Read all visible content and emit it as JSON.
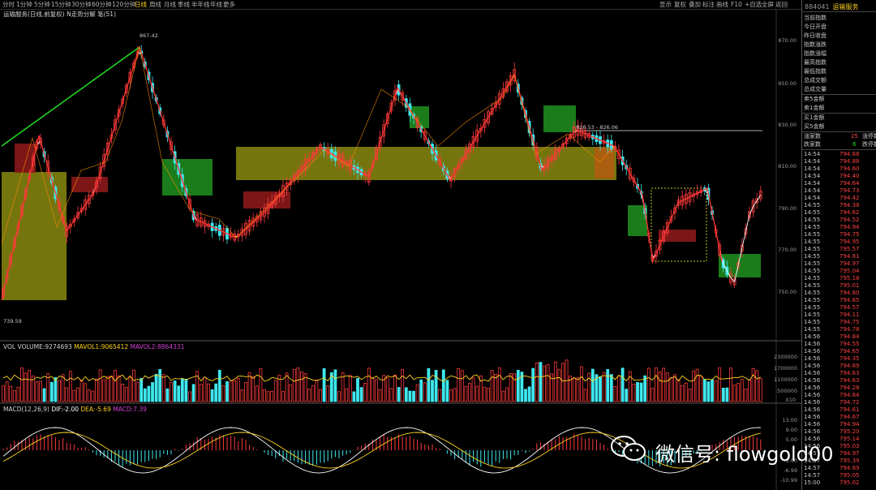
{
  "toolbar": {
    "timeframes": [
      "分时",
      "1分钟",
      "5分钟",
      "15分钟",
      "30分钟",
      "60分钟",
      "120分钟",
      "日线",
      "周线",
      "月线",
      "季线",
      "半年线",
      "年线",
      "更多"
    ],
    "active_index": 7,
    "right_tools": [
      "显示",
      "复权",
      "叠加",
      "标注",
      "画线",
      "F10",
      "+自选",
      "全屏",
      "返回"
    ]
  },
  "stock": {
    "code": "884041",
    "name": "运输服务"
  },
  "main_chart": {
    "title": "运输服务(日线,前复权) N走势分解 笔(51)",
    "y_ticks": [
      "870.00",
      "850.00",
      "830.00",
      "810.00",
      "790.00",
      "770.00",
      "750.00"
    ],
    "high_label": "867.42",
    "low_label": "739.59",
    "level_label": "826.53 - 826.06"
  },
  "volume": {
    "label": "VOL VOLUME:9274693",
    "mavol1": "MAVOL1:9065412",
    "mavol2": "MAVOL2:8864331",
    "y_ticks": [
      "2300000",
      "1700000",
      "1100000",
      "500000"
    ],
    "unit": "X10"
  },
  "macd": {
    "label": "MACD(12,26,9)",
    "dif": "DIF:-2.00",
    "dea": "DEA:-5.69",
    "macd": "MACD:7.39",
    "y_ticks": [
      "13.00",
      "9.00",
      "5.00",
      "-3.00",
      "-6.99",
      "-10.99"
    ]
  },
  "quote_panel": {
    "fields": [
      "当前指数",
      "今日开盘",
      "昨日收盘",
      "指数涨跌",
      "指数涨幅",
      "最高指数",
      "最低指数",
      "总成交额",
      "总成交量"
    ],
    "orders": [
      "卖5金额",
      "卖1金额",
      "买1金额",
      "买5金额"
    ],
    "up_label": "涨家数",
    "up_count": "25",
    "up_tag": "涨停数",
    "down_label": "跌家数",
    "down_count": "6",
    "down_tag": "跌停数"
  },
  "ticks": [
    {
      "t": "14:54",
      "p": "794.68"
    },
    {
      "t": "14:54",
      "p": "794.88"
    },
    {
      "t": "14:54",
      "p": "794.60"
    },
    {
      "t": "14:54",
      "p": "794.40"
    },
    {
      "t": "14:54",
      "p": "794.64"
    },
    {
      "t": "14:54",
      "p": "794.73"
    },
    {
      "t": "14:54",
      "p": "794.42"
    },
    {
      "t": "14:55",
      "p": "794.38"
    },
    {
      "t": "14:55",
      "p": "794.62"
    },
    {
      "t": "14:55",
      "p": "794.52"
    },
    {
      "t": "14:55",
      "p": "794.94"
    },
    {
      "t": "14:55",
      "p": "794.75"
    },
    {
      "t": "14:55",
      "p": "794.95"
    },
    {
      "t": "14:55",
      "p": "795.57"
    },
    {
      "t": "14:55",
      "p": "794.81"
    },
    {
      "t": "14:55",
      "p": "794.97"
    },
    {
      "t": "14:55",
      "p": "795.04"
    },
    {
      "t": "14:55",
      "p": "795.18"
    },
    {
      "t": "14:55",
      "p": "795.01"
    },
    {
      "t": "14:55",
      "p": "794.60"
    },
    {
      "t": "14:55",
      "p": "794.65"
    },
    {
      "t": "14:55",
      "p": "794.57"
    },
    {
      "t": "14:55",
      "p": "794.11"
    },
    {
      "t": "14:55",
      "p": "794.75"
    },
    {
      "t": "14:55",
      "p": "794.78"
    },
    {
      "t": "14:56",
      "p": "794.84"
    },
    {
      "t": "14:56",
      "p": "794.55"
    },
    {
      "t": "14:56",
      "p": "794.65"
    },
    {
      "t": "14:56",
      "p": "794.35"
    },
    {
      "t": "14:56",
      "p": "794.69"
    },
    {
      "t": "14:56",
      "p": "794.63"
    },
    {
      "t": "14:56",
      "p": "794.63"
    },
    {
      "t": "14:56",
      "p": "794.28"
    },
    {
      "t": "14:56",
      "p": "794.64"
    },
    {
      "t": "14:56",
      "p": "794.72"
    },
    {
      "t": "14:56",
      "p": "794.61"
    },
    {
      "t": "14:56",
      "p": "794.67"
    },
    {
      "t": "14:56",
      "p": "794.94"
    },
    {
      "t": "14:56",
      "p": "795.20"
    },
    {
      "t": "14:56",
      "p": "795.14"
    },
    {
      "t": "14:56",
      "p": "795.03"
    },
    {
      "t": "14:57",
      "p": "794.97"
    },
    {
      "t": "14:57",
      "p": "795.39"
    },
    {
      "t": "14:57",
      "p": "794.69"
    },
    {
      "t": "14:57",
      "p": "795.05"
    },
    {
      "t": "15:00",
      "p": "795.02"
    }
  ],
  "watermark": {
    "text": "微信号: flowgold00"
  }
}
